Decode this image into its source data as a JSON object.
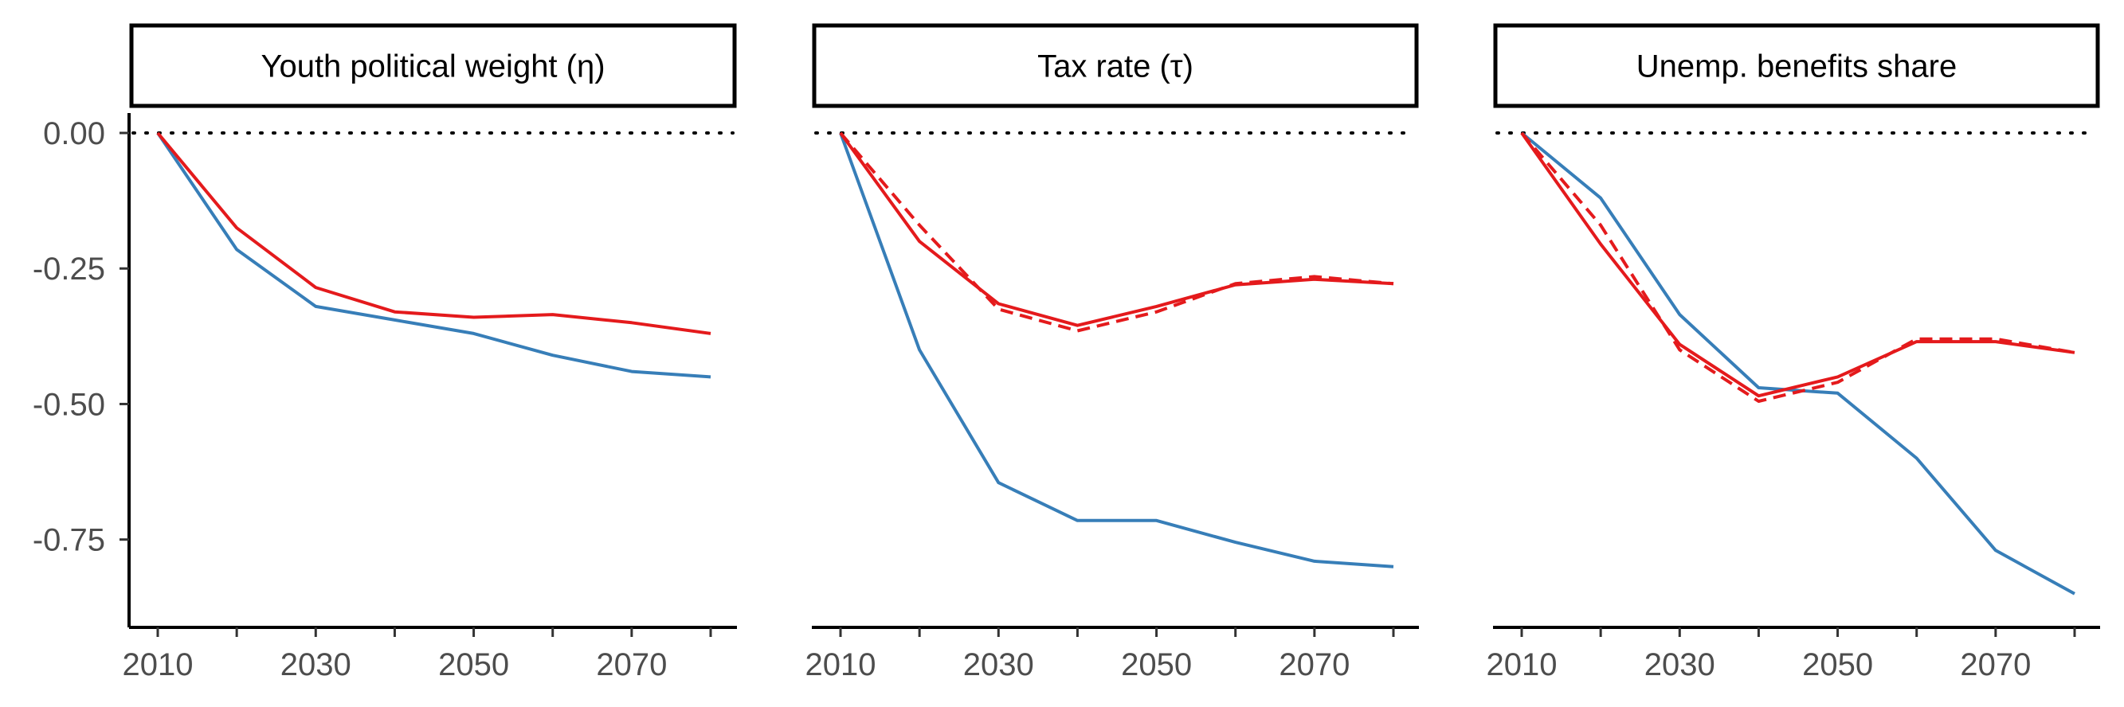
{
  "chart_data": [
    {
      "type": "line",
      "title": "Youth political weight (η)",
      "x": [
        2010,
        2020,
        2030,
        2040,
        2050,
        2060,
        2070,
        2080
      ],
      "x_ticks": [
        2010,
        2030,
        2050,
        2070
      ],
      "y_ticks": [
        0.0,
        -0.25,
        -0.5,
        -0.75
      ],
      "y_tick_labels": [
        "0.00",
        "-0.25",
        "-0.50",
        "-0.75"
      ],
      "xlim": [
        2010,
        2080
      ],
      "ylim": [
        -0.89,
        0.0
      ],
      "reference_line": 0,
      "grid": false,
      "series": [
        {
          "color": "#e41a1c",
          "style": "solid",
          "values": [
            0.0,
            -0.175,
            -0.285,
            -0.33,
            -0.34,
            -0.335,
            -0.35,
            -0.37
          ]
        },
        {
          "color": "#377eb8",
          "style": "solid",
          "values": [
            0.0,
            -0.215,
            -0.32,
            -0.345,
            -0.37,
            -0.41,
            -0.44,
            -0.45
          ]
        }
      ]
    },
    {
      "type": "line",
      "title": "Tax rate (τ)",
      "x": [
        2010,
        2020,
        2030,
        2040,
        2050,
        2060,
        2070,
        2080
      ],
      "x_ticks": [
        2010,
        2030,
        2050,
        2070
      ],
      "xlim": [
        2010,
        2080
      ],
      "ylim": [
        -0.89,
        0.0
      ],
      "reference_line": 0,
      "grid": false,
      "series": [
        {
          "color": "#e41a1c",
          "style": "solid",
          "values": [
            0.0,
            -0.2,
            -0.315,
            -0.355,
            -0.32,
            -0.28,
            -0.27,
            -0.278
          ]
        },
        {
          "color": "#e41a1c",
          "style": "dashed",
          "values": [
            0.0,
            -0.17,
            -0.325,
            -0.365,
            -0.33,
            -0.278,
            -0.265,
            -0.278
          ]
        },
        {
          "color": "#377eb8",
          "style": "solid",
          "values": [
            0.0,
            -0.4,
            -0.645,
            -0.715,
            -0.715,
            -0.755,
            -0.79,
            -0.8
          ]
        }
      ]
    },
    {
      "type": "line",
      "title": "Unemp. benefits share",
      "x": [
        2010,
        2020,
        2030,
        2040,
        2050,
        2060,
        2070,
        2080
      ],
      "x_ticks": [
        2010,
        2030,
        2050,
        2070
      ],
      "xlim": [
        2010,
        2080
      ],
      "ylim": [
        -0.89,
        0.0
      ],
      "reference_line": 0,
      "grid": false,
      "series": [
        {
          "color": "#e41a1c",
          "style": "solid",
          "values": [
            0.0,
            -0.205,
            -0.39,
            -0.485,
            -0.45,
            -0.385,
            -0.385,
            -0.405
          ]
        },
        {
          "color": "#e41a1c",
          "style": "dashed",
          "values": [
            0.0,
            -0.17,
            -0.4,
            -0.495,
            -0.46,
            -0.38,
            -0.38,
            -0.405
          ]
        },
        {
          "color": "#377eb8",
          "style": "solid",
          "values": [
            0.0,
            -0.12,
            -0.335,
            -0.47,
            -0.48,
            -0.6,
            -0.77,
            -0.85
          ]
        }
      ]
    }
  ]
}
